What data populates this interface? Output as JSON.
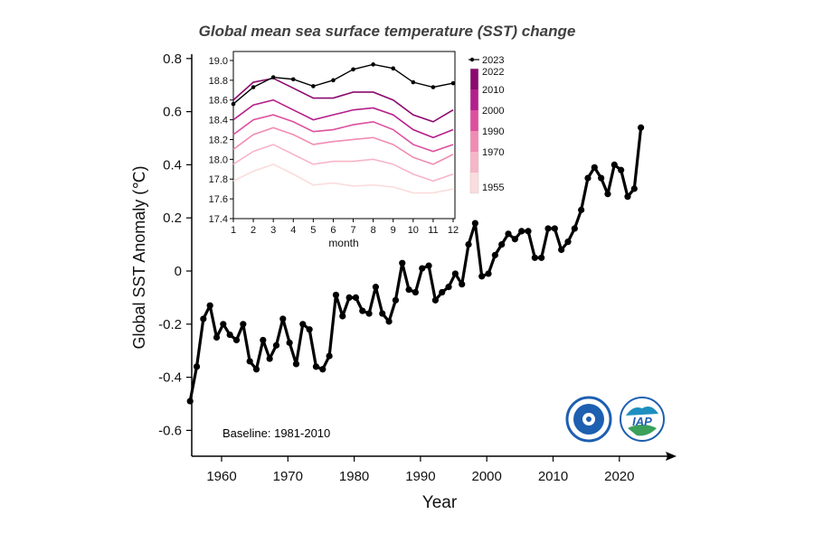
{
  "chart_data": [
    {
      "type": "line",
      "title": "Global mean sea surface temperature (SST) change",
      "xlabel": "Year",
      "ylabel": "Global SST Anomaly (℃)",
      "annotation": "Baseline: 1981-2010",
      "xlim": [
        1955,
        2026
      ],
      "ylim": [
        -0.7,
        0.85
      ],
      "xticks": [
        "1960",
        "1970",
        "1980",
        "1990",
        "2000",
        "2010",
        "2020"
      ],
      "yticks": [
        "-0.6",
        "-0.4",
        "-0.2",
        "0",
        "0.2",
        "0.4",
        "0.6",
        "0.8"
      ],
      "grid": false,
      "colors": {
        "annual": "#000000",
        "monthly": "#d9441a"
      },
      "x": [
        1955,
        1956,
        1957,
        1958,
        1959,
        1960,
        1961,
        1962,
        1963,
        1964,
        1965,
        1966,
        1967,
        1968,
        1969,
        1970,
        1971,
        1972,
        1973,
        1974,
        1975,
        1976,
        1977,
        1978,
        1979,
        1980,
        1981,
        1982,
        1983,
        1984,
        1985,
        1986,
        1987,
        1988,
        1989,
        1990,
        1991,
        1992,
        1993,
        1994,
        1995,
        1996,
        1997,
        1998,
        1999,
        2000,
        2001,
        2002,
        2003,
        2004,
        2005,
        2006,
        2007,
        2008,
        2009,
        2010,
        2011,
        2012,
        2013,
        2014,
        2015,
        2016,
        2017,
        2018,
        2019,
        2020,
        2021,
        2022,
        2023
      ],
      "series": [
        {
          "values": [
            -0.49,
            -0.36,
            -0.18,
            -0.13,
            -0.25,
            -0.2,
            -0.24,
            -0.26,
            -0.2,
            -0.34,
            -0.37,
            -0.26,
            -0.33,
            -0.28,
            -0.18,
            -0.27,
            -0.35,
            -0.2,
            -0.22,
            -0.36,
            -0.37,
            -0.32,
            -0.09,
            -0.17,
            -0.1,
            -0.1,
            -0.15,
            -0.16,
            -0.06,
            -0.16,
            -0.19,
            -0.11,
            0.03,
            -0.07,
            -0.08,
            0.01,
            0.02,
            -0.11,
            -0.08,
            -0.06,
            -0.01,
            -0.05,
            0.1,
            0.18,
            -0.02,
            -0.01,
            0.06,
            0.1,
            0.14,
            0.12,
            0.15,
            0.15,
            0.05,
            0.05,
            0.16,
            0.16,
            0.08,
            0.11,
            0.16,
            0.23,
            0.35,
            0.39,
            0.35,
            0.29,
            0.4,
            0.38,
            0.28,
            0.31,
            0.54
          ]
        }
      ],
      "logos": [
        "Chinese Academy of Sciences",
        "IAP"
      ]
    },
    {
      "type": "line",
      "xlabel": "month",
      "ylabel": "",
      "xlim": [
        1,
        12
      ],
      "ylim": [
        17.4,
        19.0
      ],
      "xticks": [
        "1",
        "2",
        "3",
        "4",
        "5",
        "6",
        "7",
        "8",
        "9",
        "10",
        "11",
        "12"
      ],
      "yticks": [
        "17.4",
        "17.6",
        "17.8",
        "18.0",
        "18.2",
        "18.4",
        "18.6",
        "18.8",
        "19.0"
      ],
      "legend": {
        "position": "right",
        "label_2023": "2023",
        "colorbar_labels": [
          "2022",
          "2010",
          "2000",
          "1990",
          "1970",
          "1955"
        ]
      },
      "colorbar_colors": [
        "#8c0a6e",
        "#b51f8b",
        "#de4f9e",
        "#f08cb3",
        "#f7b5c8",
        "#fbdcdc"
      ],
      "x": [
        1,
        2,
        3,
        4,
        5,
        6,
        7,
        8,
        9,
        10,
        11,
        12
      ],
      "series": [
        {
          "name": "2023",
          "color": "#000000",
          "values": [
            18.56,
            18.73,
            18.83,
            18.81,
            18.74,
            18.8,
            18.91,
            18.96,
            18.92,
            18.78,
            18.73,
            18.77
          ]
        },
        {
          "name": "2022",
          "color": "#8c0a6e",
          "values": [
            18.6,
            18.78,
            18.82,
            18.72,
            18.62,
            18.62,
            18.68,
            18.68,
            18.6,
            18.45,
            18.38,
            18.5
          ]
        },
        {
          "name": "2010",
          "color": "#b51f8b",
          "values": [
            18.4,
            18.55,
            18.6,
            18.5,
            18.4,
            18.45,
            18.5,
            18.52,
            18.45,
            18.3,
            18.22,
            18.3
          ]
        },
        {
          "name": "2000",
          "color": "#de4f9e",
          "values": [
            18.25,
            18.4,
            18.45,
            18.38,
            18.28,
            18.3,
            18.35,
            18.38,
            18.3,
            18.15,
            18.08,
            18.15
          ]
        },
        {
          "name": "1990",
          "color": "#f08cb3",
          "values": [
            18.1,
            18.25,
            18.32,
            18.25,
            18.15,
            18.18,
            18.2,
            18.22,
            18.15,
            18.02,
            17.95,
            18.05
          ]
        },
        {
          "name": "1970",
          "color": "#f7b5c8",
          "values": [
            17.95,
            18.08,
            18.15,
            18.05,
            17.95,
            17.98,
            17.98,
            18.0,
            17.95,
            17.85,
            17.78,
            17.85
          ]
        },
        {
          "name": "1955",
          "color": "#fbdcdc",
          "values": [
            17.78,
            17.88,
            17.95,
            17.85,
            17.74,
            17.76,
            17.73,
            17.74,
            17.72,
            17.66,
            17.66,
            17.7
          ]
        }
      ]
    }
  ]
}
